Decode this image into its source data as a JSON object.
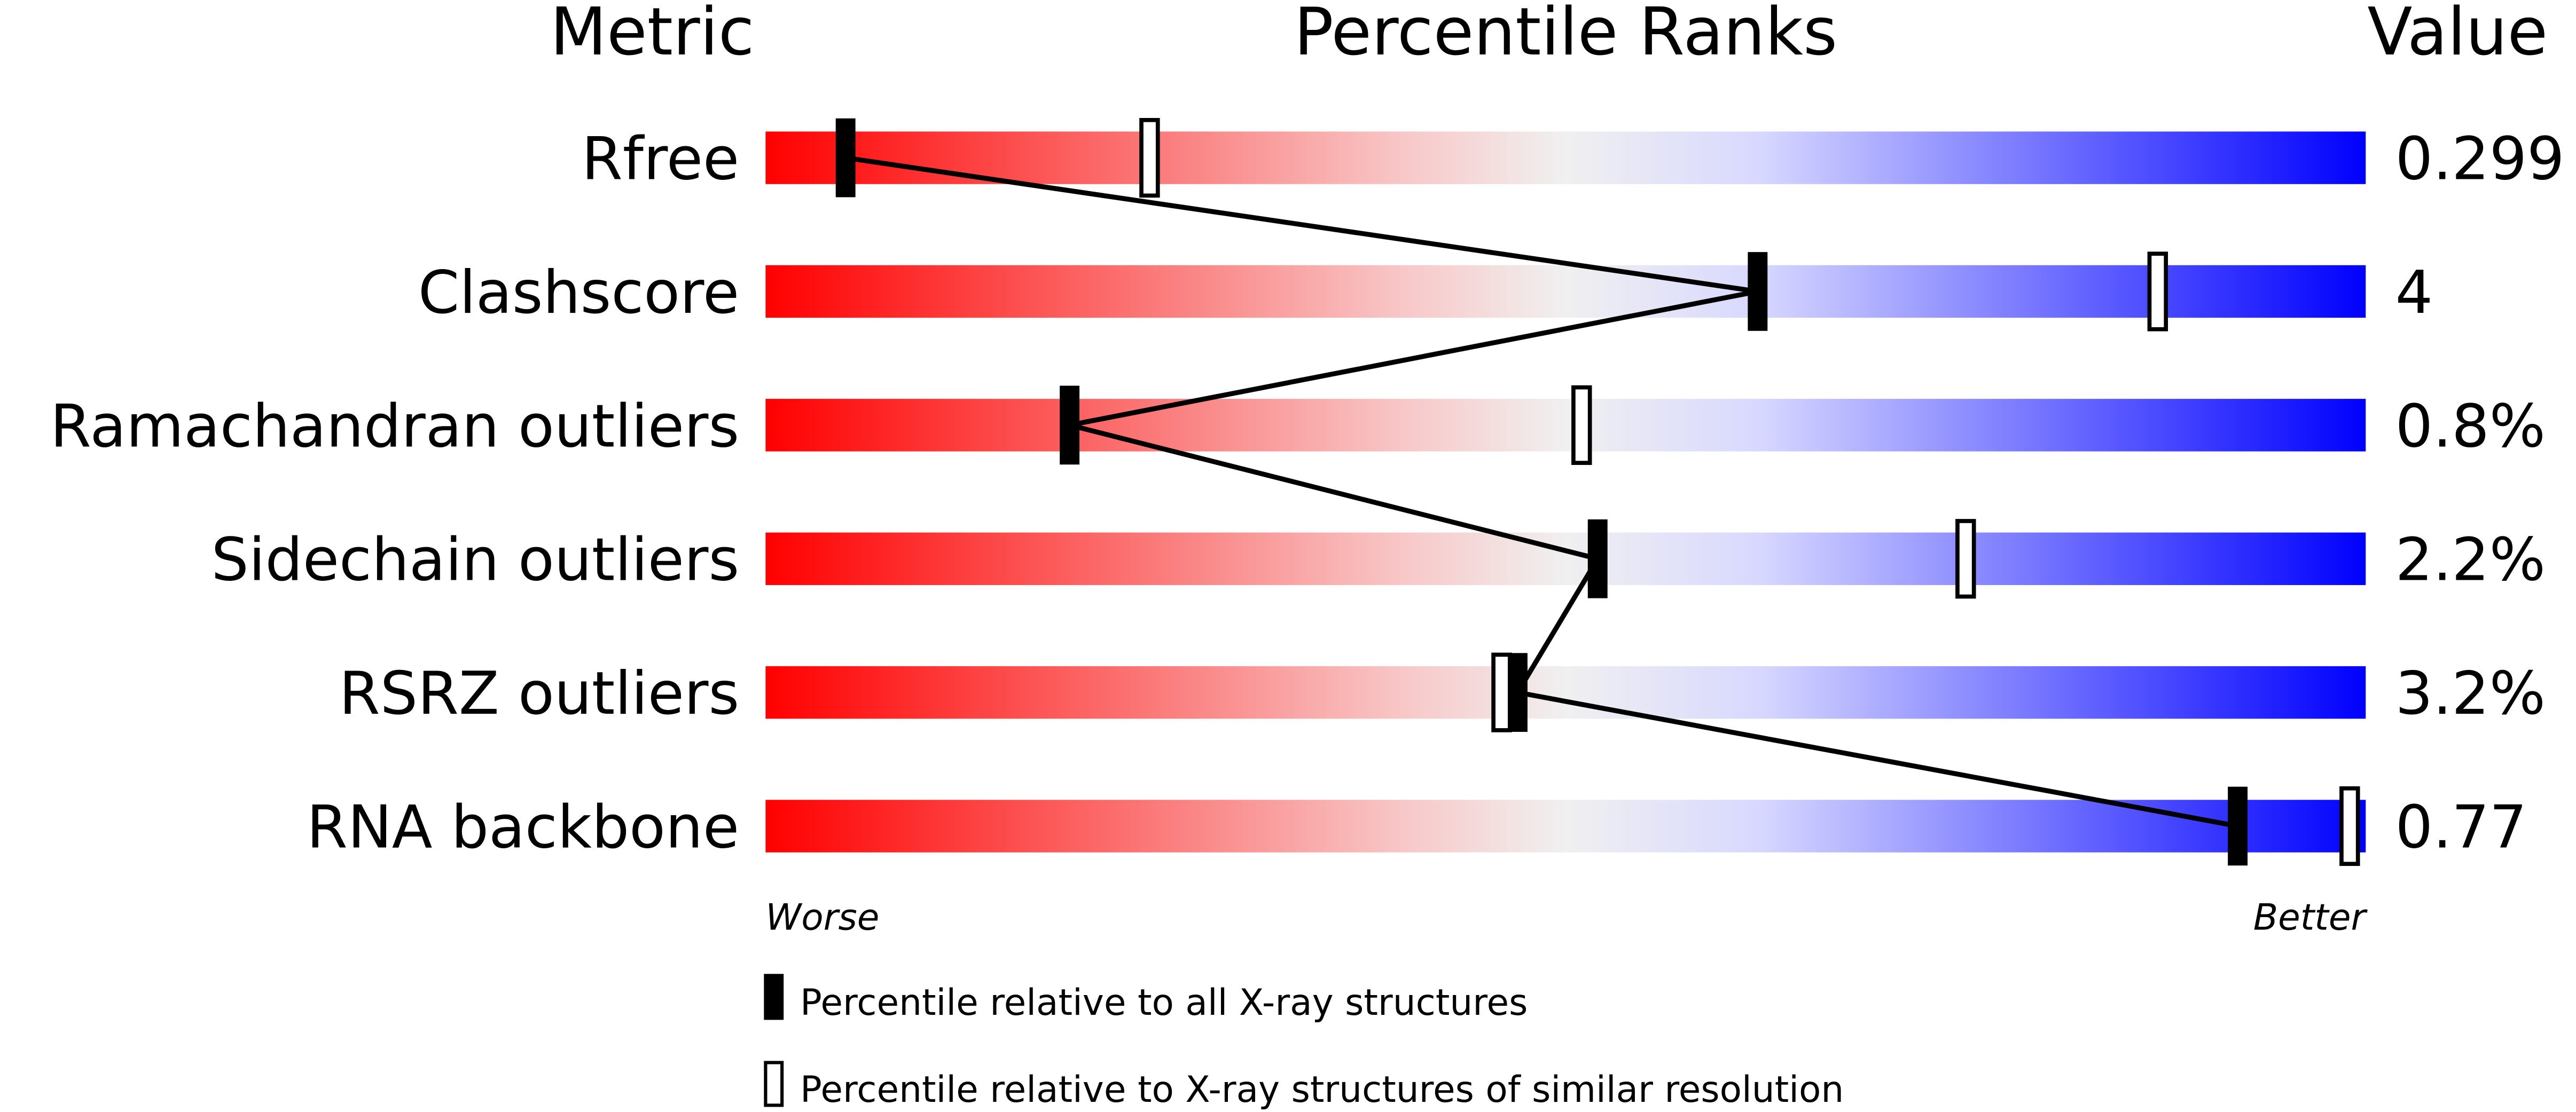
{
  "chart_data": {
    "type": "percentile-slider",
    "headers": {
      "metric": "Metric",
      "ranks": "Percentile Ranks",
      "value": "Value"
    },
    "axis": {
      "worse": "Worse",
      "better": "Better",
      "range": [
        0,
        100
      ]
    },
    "gradient_colors": [
      "#ff0000",
      "#f8c8c8",
      "#f0f0f0",
      "#d8d8ff",
      "#0000ff"
    ],
    "rows": [
      {
        "metric": "Rfree",
        "value": "0.299",
        "percentile_all": 5,
        "percentile_similar": 24
      },
      {
        "metric": "Clashscore",
        "value": "4",
        "percentile_all": 62,
        "percentile_similar": 87
      },
      {
        "metric": "Ramachandran outliers",
        "value": "0.8%",
        "percentile_all": 19,
        "percentile_similar": 51
      },
      {
        "metric": "Sidechain outliers",
        "value": "2.2%",
        "percentile_all": 52,
        "percentile_similar": 75
      },
      {
        "metric": "RSRZ outliers",
        "value": "3.2%",
        "percentile_all": 47,
        "percentile_similar": 46
      },
      {
        "metric": "RNA backbone",
        "value": "0.77",
        "percentile_all": 92,
        "percentile_similar": 99
      }
    ],
    "legend": {
      "all": "Percentile relative to all X-ray structures",
      "similar": "Percentile relative to X-ray structures of similar resolution"
    }
  }
}
